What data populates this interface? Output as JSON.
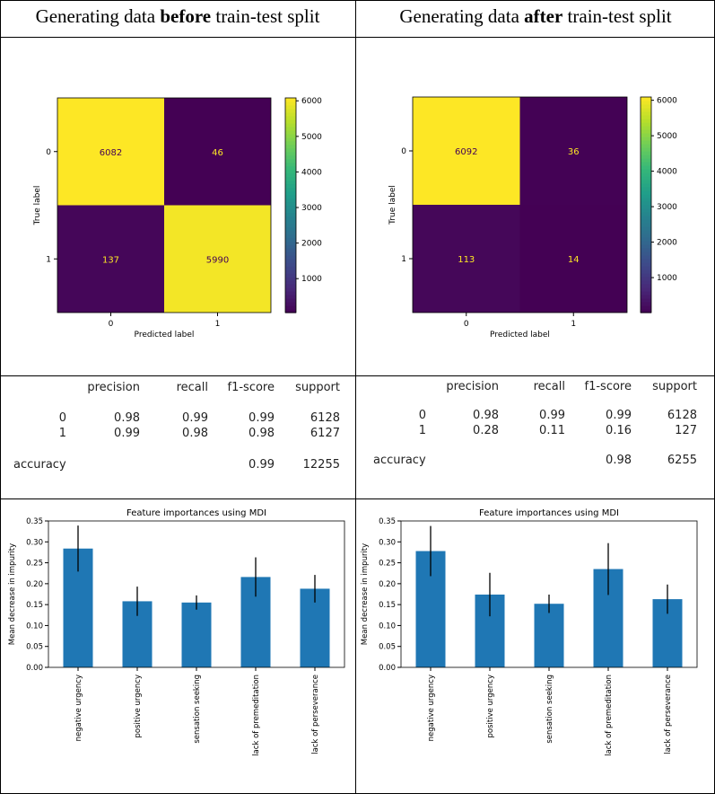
{
  "headers": [
    {
      "pre": "Generating data ",
      "bold": "before",
      "post": " train-test split"
    },
    {
      "pre": "Generating data ",
      "bold": "after",
      "post": " train-test split"
    }
  ],
  "chart_data": [
    {
      "type": "heatmap",
      "id": "cm_before",
      "xlabel": "Predicted label",
      "ylabel": "True label",
      "xticks": [
        "0",
        "1"
      ],
      "yticks": [
        "0",
        "1"
      ],
      "matrix": [
        [
          6082,
          46
        ],
        [
          137,
          5990
        ]
      ],
      "colorbar": {
        "min": 46,
        "max": 6082,
        "ticks": [
          1000,
          2000,
          3000,
          4000,
          5000,
          6000
        ],
        "colormap": "viridis"
      }
    },
    {
      "type": "heatmap",
      "id": "cm_after",
      "xlabel": "Predicted label",
      "ylabel": "True label",
      "xticks": [
        "0",
        "1"
      ],
      "yticks": [
        "0",
        "1"
      ],
      "matrix": [
        [
          6092,
          36
        ],
        [
          113,
          14
        ]
      ],
      "colorbar": {
        "min": 14,
        "max": 6092,
        "ticks": [
          1000,
          2000,
          3000,
          4000,
          5000,
          6000
        ],
        "colormap": "viridis"
      }
    },
    {
      "type": "table",
      "id": "report_before",
      "columns": [
        "precision",
        "recall",
        "f1-score",
        "support"
      ],
      "rows": [
        {
          "label": "0",
          "values": [
            "0.98",
            "0.99",
            "0.99",
            "6128"
          ]
        },
        {
          "label": "1",
          "values": [
            "0.99",
            "0.98",
            "0.98",
            "6127"
          ]
        }
      ],
      "accuracy": {
        "label": "accuracy",
        "f1": "0.99",
        "support": "12255"
      }
    },
    {
      "type": "table",
      "id": "report_after",
      "columns": [
        "precision",
        "recall",
        "f1-score",
        "support"
      ],
      "rows": [
        {
          "label": "0",
          "values": [
            "0.98",
            "0.99",
            "0.99",
            "6128"
          ]
        },
        {
          "label": "1",
          "values": [
            "0.28",
            "0.11",
            "0.16",
            "127"
          ]
        }
      ],
      "accuracy": {
        "label": "accuracy",
        "f1": "0.98",
        "support": "6255"
      }
    },
    {
      "type": "bar",
      "id": "fi_before",
      "title": "Feature importances using MDI",
      "ylabel": "Mean decrease in impurity",
      "categories": [
        "negative urgency",
        "positive urgency",
        "sensation seeking",
        "lack of premeditation",
        "lack of perseverance"
      ],
      "values": [
        0.284,
        0.158,
        0.155,
        0.216,
        0.188
      ],
      "errors": [
        0.055,
        0.035,
        0.017,
        0.047,
        0.033
      ],
      "ylim": [
        0,
        0.35
      ],
      "yticks": [
        "0.00",
        "0.05",
        "0.10",
        "0.15",
        "0.20",
        "0.25",
        "0.30",
        "0.35"
      ],
      "color": "#1f77b4"
    },
    {
      "type": "bar",
      "id": "fi_after",
      "title": "Feature importances using MDI",
      "ylabel": "Mean decrease in impurity",
      "categories": [
        "negative urgency",
        "positive urgency",
        "sensation seeking",
        "lack of premeditation",
        "lack of perseverance"
      ],
      "values": [
        0.278,
        0.174,
        0.152,
        0.235,
        0.163
      ],
      "errors": [
        0.06,
        0.052,
        0.022,
        0.062,
        0.035
      ],
      "ylim": [
        0,
        0.35
      ],
      "yticks": [
        "0.00",
        "0.05",
        "0.10",
        "0.15",
        "0.20",
        "0.25",
        "0.30",
        "0.35"
      ],
      "color": "#1f77b4"
    }
  ]
}
